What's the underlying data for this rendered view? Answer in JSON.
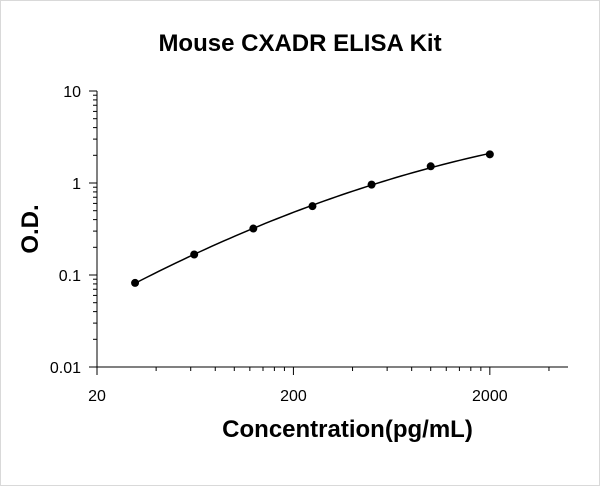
{
  "chart_data": {
    "type": "scatter",
    "title": "Mouse CXADR ELISA Kit",
    "xlabel": "Concentration(pg/mL)",
    "ylabel": "O.D.",
    "x_scale": "log",
    "y_scale": "log",
    "xlim": [
      20,
      5000
    ],
    "ylim": [
      0.01,
      10
    ],
    "x_ticks": [
      "20",
      "200",
      "2000"
    ],
    "y_ticks": [
      "10",
      "1",
      "0.1",
      "0.01"
    ],
    "grid": false,
    "legend": "none",
    "trendline": true,
    "series": [
      {
        "points": [
          {
            "x": 31.25,
            "y": 0.082
          },
          {
            "x": 62.5,
            "y": 0.167
          },
          {
            "x": 125,
            "y": 0.32
          },
          {
            "x": 250,
            "y": 0.56
          },
          {
            "x": 500,
            "y": 0.96
          },
          {
            "x": 1000,
            "y": 1.52
          },
          {
            "x": 2000,
            "y": 2.05
          }
        ]
      }
    ],
    "colors": {
      "marker": "#000000",
      "line": "#000000",
      "axis": "#000000"
    }
  }
}
